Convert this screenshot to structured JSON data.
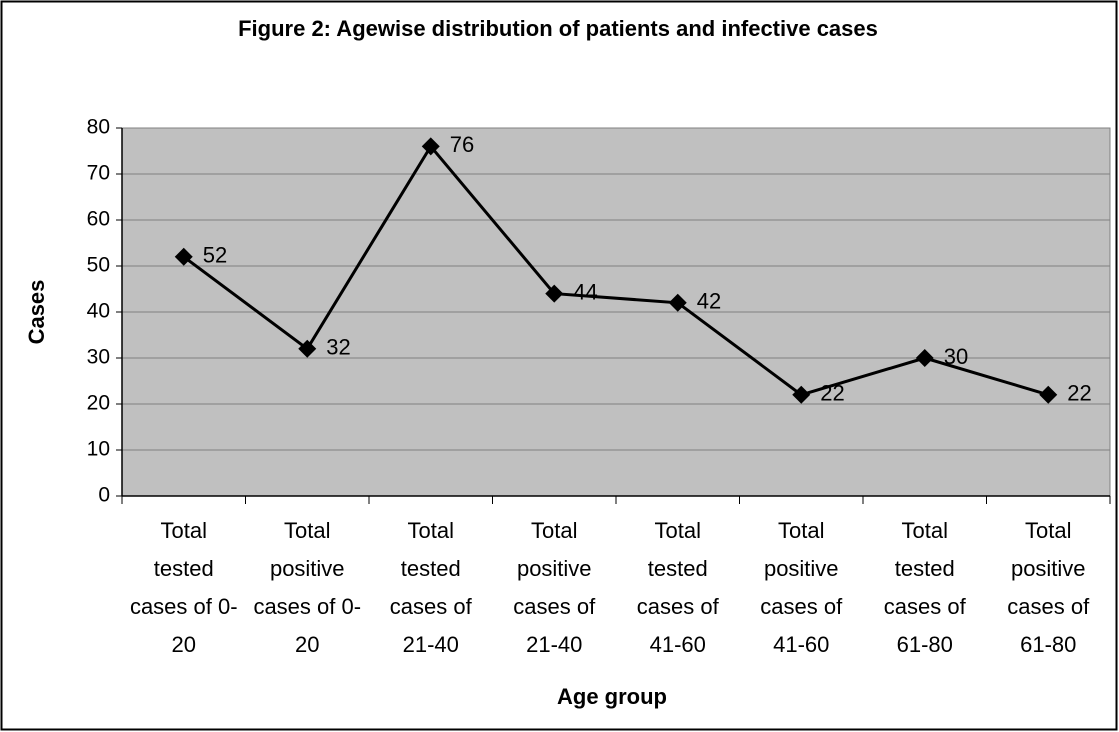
{
  "chart_data": {
    "type": "line",
    "title": "Figure 2: Agewise distribution of patients and infective cases",
    "x_label": "Age group",
    "y_label": "Cases",
    "categories": [
      "Total tested cases of 0-20",
      "Total positive cases of 0-20",
      "Total tested cases of 21-40",
      "Total positive cases of 21-40",
      "Total tested cases of 41-60",
      "Total positive cases of 41-60",
      "Total tested cases of 61-80",
      "Total positive cases of 61-80"
    ],
    "values": [
      52,
      32,
      76,
      44,
      42,
      22,
      30,
      22
    ],
    "color": "#000000",
    "plot_background": "#c0c0c0",
    "ylim": [
      0,
      80
    ],
    "yticks": [
      0,
      10,
      20,
      30,
      40,
      50,
      60,
      70,
      80
    ],
    "grid": true
  }
}
